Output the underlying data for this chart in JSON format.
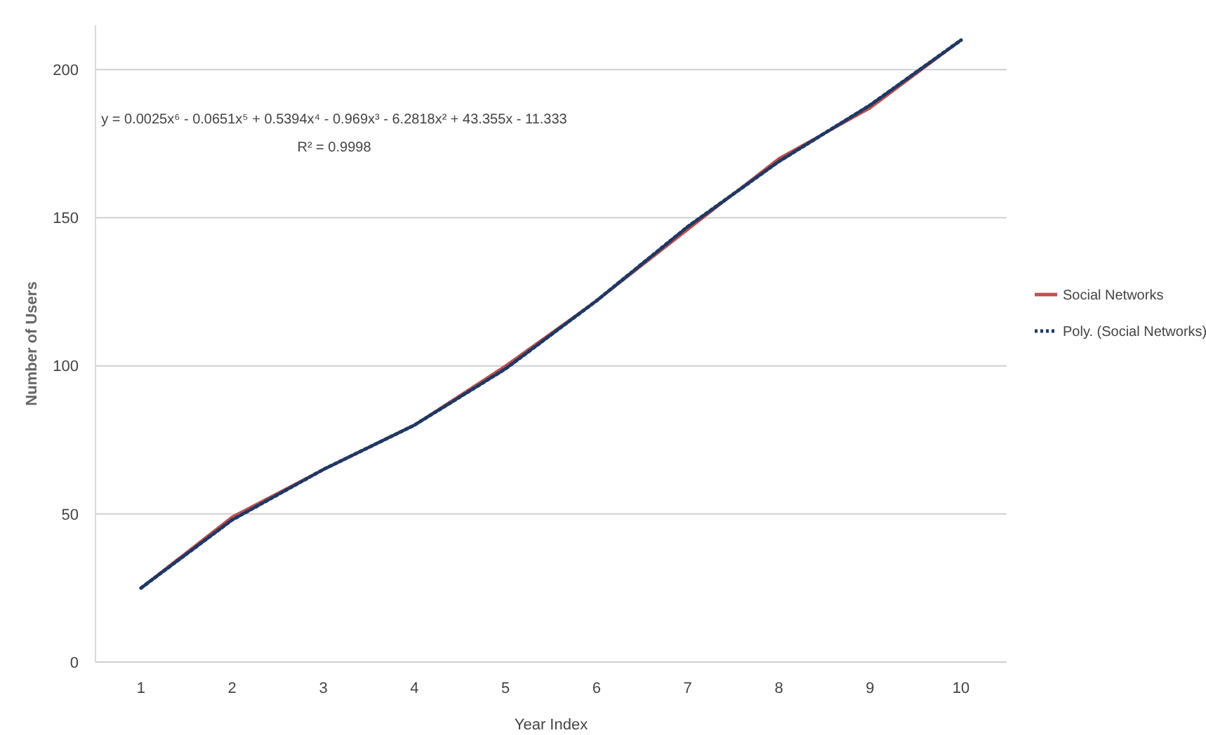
{
  "chart_data": {
    "type": "line",
    "xlabel": "Year Index",
    "ylabel": "Number of Users",
    "x": [
      1,
      2,
      3,
      4,
      5,
      6,
      7,
      8,
      9,
      10
    ],
    "series": [
      {
        "name": "Social Networks",
        "color": "#c0504d",
        "values": [
          25,
          49,
          65,
          80,
          100,
          122,
          146,
          170,
          187,
          210
        ]
      },
      {
        "name": "Poly. (Social Networks)",
        "color": "#1f3864",
        "line_style": "dotted",
        "values": [
          25,
          48,
          65,
          80,
          99,
          122,
          147,
          169,
          188,
          210
        ]
      }
    ],
    "xlim": [
      0.5,
      10.5
    ],
    "xticks": [
      1,
      2,
      3,
      4,
      5,
      6,
      7,
      8,
      9,
      10
    ],
    "ylim": [
      0,
      215
    ],
    "yticks": [
      0,
      50,
      100,
      150,
      200
    ],
    "grid": "y",
    "legend": "right",
    "annotations": [
      "y = 0.0025x⁶ - 0.0651x⁵ + 0.5394x⁴ - 0.969x³ - 6.2818x² + 43.355x - 11.333",
      "R² = 0.9998"
    ]
  }
}
